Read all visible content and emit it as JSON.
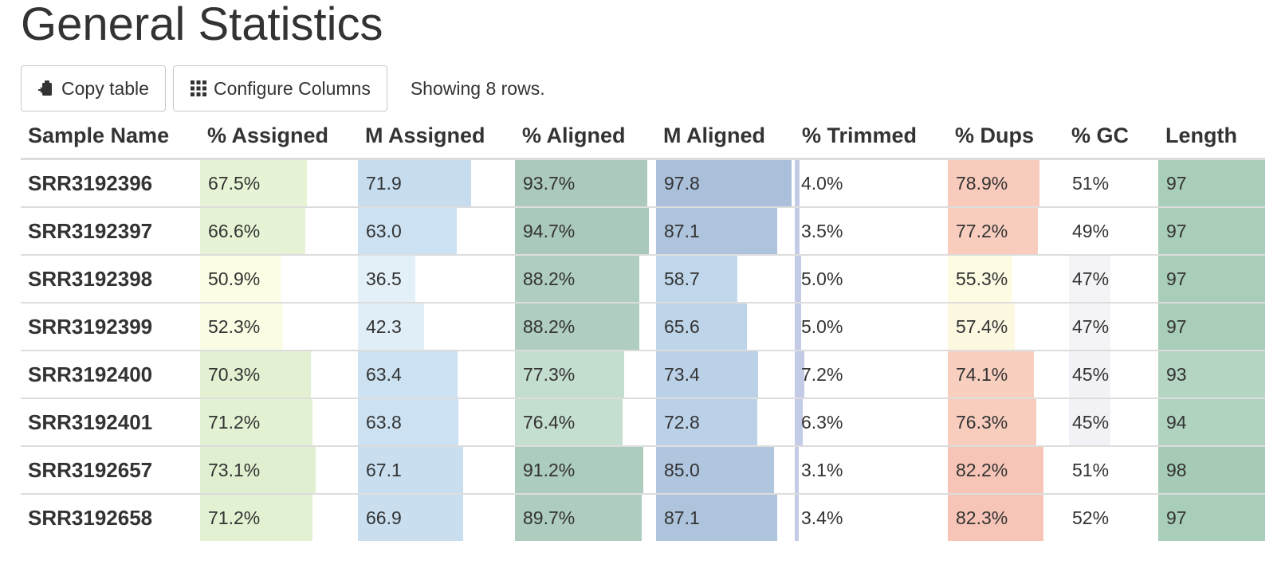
{
  "page": {
    "title": "General Statistics"
  },
  "toolbar": {
    "copy_label": "Copy table",
    "copy_icon": "clipboard-icon",
    "configure_label": "Configure Columns",
    "configure_icon": "grid-icon",
    "status": "Showing 8 rows."
  },
  "table": {
    "columns": [
      {
        "key": "name",
        "label": "Sample Name"
      },
      {
        "key": "pct_assigned",
        "label": "% Assigned"
      },
      {
        "key": "m_assigned",
        "label": "M Assigned"
      },
      {
        "key": "pct_aligned",
        "label": "% Aligned"
      },
      {
        "key": "m_aligned",
        "label": "M Aligned"
      },
      {
        "key": "pct_trimmed",
        "label": "% Trimmed"
      },
      {
        "key": "pct_dups",
        "label": "% Dups"
      },
      {
        "key": "pct_gc",
        "label": "% GC"
      },
      {
        "key": "length",
        "label": "Length"
      }
    ],
    "bar_colors": {
      "pct_assigned": [
        "#fcfde4",
        "#d8ecca"
      ],
      "m_assigned": [
        "#e4f0f8",
        "#bcd7ec"
      ],
      "pct_aligned": [
        "#c9e2d3",
        "#a9c9ba"
      ],
      "m_aligned": [
        "#c6ddef",
        "#aabfda"
      ],
      "pct_trimmed": [
        "#c3cbe6",
        "#c3cbe6"
      ],
      "pct_dups": [
        "#fdfbe2",
        "#f7c2b5"
      ],
      "pct_gc": [
        "#f7f7fa",
        "#f0f0f4"
      ],
      "length": [
        "#b3d5c2",
        "#a5cbb6"
      ]
    },
    "rows": [
      {
        "name": "SRR3192396",
        "pct_assigned": "67.5%",
        "m_assigned": "71.9",
        "pct_aligned": "93.7%",
        "m_aligned": "97.8",
        "pct_trimmed": "4.0%",
        "pct_dups": "78.9%",
        "pct_gc": "51%",
        "length": "97",
        "fill": {
          "pct_assigned": 0.675,
          "m_assigned": 0.72,
          "pct_aligned": 0.937,
          "m_aligned": 0.978,
          "pct_trimmed": 0.04,
          "pct_dups": 0.789,
          "pct_gc": 0.0,
          "length": 1.0
        },
        "tone": {
          "pct_assigned": 0.6,
          "m_assigned": 0.75,
          "pct_aligned": 0.95,
          "m_aligned": 1.0,
          "pct_trimmed": 0.5,
          "pct_dups": 0.85,
          "pct_gc": 0.3,
          "length": 0.8
        }
      },
      {
        "name": "SRR3192397",
        "pct_assigned": "66.6%",
        "m_assigned": "63.0",
        "pct_aligned": "94.7%",
        "m_aligned": "87.1",
        "pct_trimmed": "3.5%",
        "pct_dups": "77.2%",
        "pct_gc": "49%",
        "length": "97",
        "fill": {
          "pct_assigned": 0.666,
          "m_assigned": 0.63,
          "pct_aligned": 0.947,
          "m_aligned": 0.871,
          "pct_trimmed": 0.035,
          "pct_dups": 0.772,
          "pct_gc": 0.0,
          "length": 1.0
        },
        "tone": {
          "pct_assigned": 0.6,
          "m_assigned": 0.6,
          "pct_aligned": 1.0,
          "m_aligned": 0.85,
          "pct_trimmed": 0.5,
          "pct_dups": 0.8,
          "pct_gc": 0.2,
          "length": 0.8
        }
      },
      {
        "name": "SRR3192398",
        "pct_assigned": "50.9%",
        "m_assigned": "36.5",
        "pct_aligned": "88.2%",
        "m_aligned": "58.7",
        "pct_trimmed": "5.0%",
        "pct_dups": "55.3%",
        "pct_gc": "47%",
        "length": "97",
        "fill": {
          "pct_assigned": 0.509,
          "m_assigned": 0.365,
          "pct_aligned": 0.882,
          "m_aligned": 0.587,
          "pct_trimmed": 0.05,
          "pct_dups": 0.553,
          "pct_gc": 0.3,
          "length": 1.0
        },
        "tone": {
          "pct_assigned": 0.0,
          "m_assigned": 0.0,
          "pct_aligned": 0.8,
          "m_aligned": 0.2,
          "pct_trimmed": 0.5,
          "pct_dups": 0.0,
          "pct_gc": 0.5,
          "length": 0.8
        }
      },
      {
        "name": "SRR3192399",
        "pct_assigned": "52.3%",
        "m_assigned": "42.3",
        "pct_aligned": "88.2%",
        "m_aligned": "65.6",
        "pct_trimmed": "5.0%",
        "pct_dups": "57.4%",
        "pct_gc": "47%",
        "length": "97",
        "fill": {
          "pct_assigned": 0.523,
          "m_assigned": 0.423,
          "pct_aligned": 0.882,
          "m_aligned": 0.656,
          "pct_trimmed": 0.05,
          "pct_dups": 0.574,
          "pct_gc": 0.3,
          "length": 1.0
        },
        "tone": {
          "pct_assigned": 0.05,
          "m_assigned": 0.1,
          "pct_aligned": 0.8,
          "m_aligned": 0.3,
          "pct_trimmed": 0.5,
          "pct_dups": 0.05,
          "pct_gc": 0.5,
          "length": 0.8
        }
      },
      {
        "name": "SRR3192400",
        "pct_assigned": "70.3%",
        "m_assigned": "63.4",
        "pct_aligned": "77.3%",
        "m_aligned": "73.4",
        "pct_trimmed": "7.2%",
        "pct_dups": "74.1%",
        "pct_gc": "45%",
        "length": "93",
        "fill": {
          "pct_assigned": 0.703,
          "m_assigned": 0.634,
          "pct_aligned": 0.773,
          "m_aligned": 0.734,
          "pct_trimmed": 0.072,
          "pct_dups": 0.741,
          "pct_gc": 0.3,
          "length": 1.0
        },
        "tone": {
          "pct_assigned": 0.7,
          "m_assigned": 0.6,
          "pct_aligned": 0.2,
          "m_aligned": 0.4,
          "pct_trimmed": 0.5,
          "pct_dups": 0.75,
          "pct_gc": 0.7,
          "length": 0.0
        }
      },
      {
        "name": "SRR3192401",
        "pct_assigned": "71.2%",
        "m_assigned": "63.8",
        "pct_aligned": "76.4%",
        "m_aligned": "72.8",
        "pct_trimmed": "6.3%",
        "pct_dups": "76.3%",
        "pct_gc": "45%",
        "length": "94",
        "fill": {
          "pct_assigned": 0.712,
          "m_assigned": 0.638,
          "pct_aligned": 0.764,
          "m_aligned": 0.728,
          "pct_trimmed": 0.063,
          "pct_dups": 0.763,
          "pct_gc": 0.3,
          "length": 1.0
        },
        "tone": {
          "pct_assigned": 0.72,
          "m_assigned": 0.6,
          "pct_aligned": 0.15,
          "m_aligned": 0.4,
          "pct_trimmed": 0.5,
          "pct_dups": 0.8,
          "pct_gc": 0.7,
          "length": 0.2
        }
      },
      {
        "name": "SRR3192657",
        "pct_assigned": "73.1%",
        "m_assigned": "67.1",
        "pct_aligned": "91.2%",
        "m_aligned": "85.0",
        "pct_trimmed": "3.1%",
        "pct_dups": "82.2%",
        "pct_gc": "51%",
        "length": "98",
        "fill": {
          "pct_assigned": 0.731,
          "m_assigned": 0.671,
          "pct_aligned": 0.912,
          "m_aligned": 0.85,
          "pct_trimmed": 0.031,
          "pct_dups": 0.822,
          "pct_gc": 0.0,
          "length": 1.0
        },
        "tone": {
          "pct_assigned": 0.8,
          "m_assigned": 0.68,
          "pct_aligned": 0.9,
          "m_aligned": 0.8,
          "pct_trimmed": 0.5,
          "pct_dups": 0.95,
          "pct_gc": 0.3,
          "length": 1.0
        }
      },
      {
        "name": "SRR3192658",
        "pct_assigned": "71.2%",
        "m_assigned": "66.9",
        "pct_aligned": "89.7%",
        "m_aligned": "87.1",
        "pct_trimmed": "3.4%",
        "pct_dups": "82.3%",
        "pct_gc": "52%",
        "length": "97",
        "fill": {
          "pct_assigned": 0.712,
          "m_assigned": 0.669,
          "pct_aligned": 0.897,
          "m_aligned": 0.871,
          "pct_trimmed": 0.034,
          "pct_dups": 0.823,
          "pct_gc": 0.0,
          "length": 1.0
        },
        "tone": {
          "pct_assigned": 0.72,
          "m_assigned": 0.68,
          "pct_aligned": 0.85,
          "m_aligned": 0.85,
          "pct_trimmed": 0.5,
          "pct_dups": 0.95,
          "pct_gc": 0.2,
          "length": 0.8
        }
      }
    ]
  }
}
